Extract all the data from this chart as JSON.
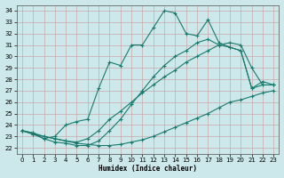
{
  "xlabel": "Humidex (Indice chaleur)",
  "ylabel": "",
  "bg_color": "#cce8ea",
  "grid_color": "#b8d8da",
  "line_color": "#1a7a6e",
  "xlim": [
    -0.5,
    23.5
  ],
  "ylim": [
    21.5,
    34.5
  ],
  "yticks": [
    22,
    23,
    24,
    25,
    26,
    27,
    28,
    29,
    30,
    31,
    32,
    33,
    34
  ],
  "xticks": [
    0,
    1,
    2,
    3,
    4,
    5,
    6,
    7,
    8,
    9,
    10,
    11,
    12,
    13,
    14,
    15,
    16,
    17,
    18,
    19,
    20,
    21,
    22,
    23
  ],
  "line1_x": [
    0,
    1,
    2,
    3,
    4,
    5,
    6,
    7,
    8,
    9,
    10,
    11,
    12,
    13,
    14,
    15,
    16,
    17,
    18,
    19,
    20,
    21,
    22,
    23
  ],
  "line1_y": [
    23.5,
    23.3,
    22.8,
    23.0,
    24.0,
    24.3,
    24.5,
    27.2,
    29.5,
    29.2,
    31.0,
    31.0,
    32.5,
    34.0,
    33.8,
    32.0,
    31.8,
    33.2,
    31.2,
    30.8,
    30.5,
    27.2,
    27.8,
    27.5
  ],
  "line2_x": [
    0,
    1,
    2,
    3,
    4,
    5,
    6,
    7,
    8,
    9,
    10,
    11,
    12,
    13,
    14,
    15,
    16,
    17,
    18,
    19,
    20,
    21,
    22,
    23
  ],
  "line2_y": [
    23.5,
    23.2,
    22.8,
    22.5,
    22.4,
    22.2,
    22.2,
    22.6,
    23.5,
    24.5,
    25.8,
    27.0,
    28.2,
    29.2,
    30.0,
    30.5,
    31.2,
    31.5,
    31.0,
    30.8,
    30.5,
    27.2,
    27.5,
    27.5
  ],
  "line3_x": [
    0,
    1,
    2,
    3,
    4,
    5,
    6,
    7,
    8,
    9,
    10,
    11,
    12,
    13,
    14,
    15,
    16,
    17,
    18,
    19,
    20,
    21,
    22,
    23
  ],
  "line3_y": [
    23.5,
    23.2,
    23.0,
    22.8,
    22.6,
    22.5,
    22.8,
    23.5,
    24.5,
    25.2,
    26.0,
    26.8,
    27.5,
    28.2,
    28.8,
    29.5,
    30.0,
    30.5,
    31.0,
    31.2,
    31.0,
    29.0,
    27.5,
    27.5
  ],
  "line4_x": [
    0,
    1,
    2,
    3,
    4,
    5,
    6,
    7,
    8,
    9,
    10,
    11,
    12,
    13,
    14,
    15,
    16,
    17,
    18,
    19,
    20,
    21,
    22,
    23
  ],
  "line4_y": [
    23.5,
    23.3,
    23.0,
    22.8,
    22.6,
    22.4,
    22.3,
    22.2,
    22.2,
    22.3,
    22.5,
    22.7,
    23.0,
    23.4,
    23.8,
    24.2,
    24.6,
    25.0,
    25.5,
    26.0,
    26.2,
    26.5,
    26.8,
    27.0
  ]
}
